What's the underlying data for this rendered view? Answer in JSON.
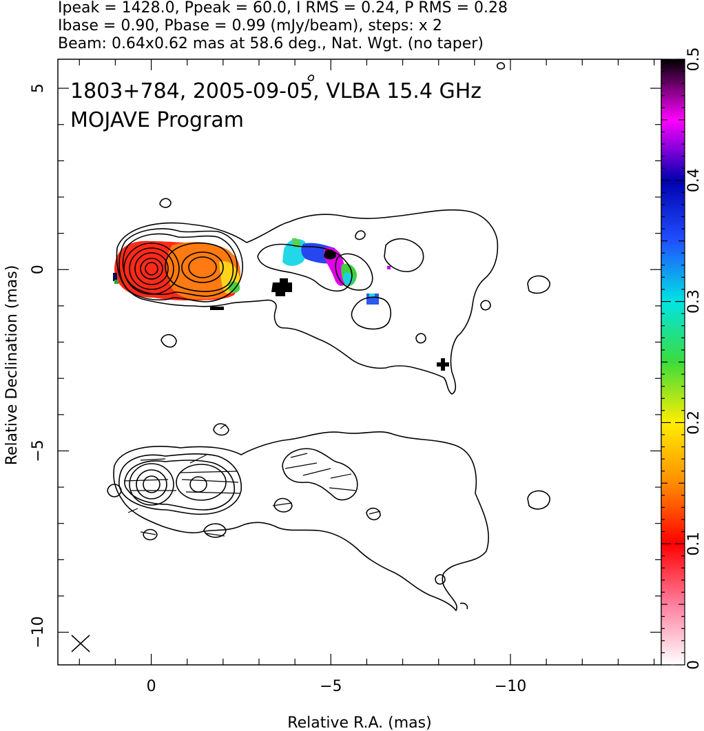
{
  "header": {
    "line1": "Ipeak = 1428.0, Ppeak = 60.0, I RMS = 0.24, P RMS = 0.28",
    "line2": "Ibase = 0.90, Pbase = 0.99 (mJy/beam), steps: x 2",
    "line3": "Beam: 0.64x0.62 mas at 58.6 deg., Nat. Wgt. (no taper)"
  },
  "chart_data": {
    "type": "heatmap",
    "annotation_line1": "1803+784, 2005-09-05, VLBA 15.4 GHz",
    "annotation_line2": "MOJAVE Program",
    "xlabel": "Relative R.A. (mas)",
    "ylabel": "Relative Declination (mas)",
    "xlim": [
      2.6,
      -14.2
    ],
    "ylim": [
      -10.9,
      5.8
    ],
    "x_ticks": [
      0,
      -5,
      -10
    ],
    "x_tick_labels": [
      "0",
      "−5",
      "−10"
    ],
    "y_ticks": [
      5,
      0,
      -5,
      -10
    ],
    "y_tick_labels": [
      "5",
      "0",
      "−5",
      "−10"
    ],
    "colorbar": {
      "min": 0,
      "max": 0.5,
      "ticks": [
        0,
        0.1,
        0.2,
        0.3,
        0.4,
        0.5
      ],
      "tick_labels": [
        "0",
        "0.1",
        "0.2",
        "0.3",
        "0.4",
        "0.5"
      ],
      "stops": [
        {
          "v": 0.0,
          "color": "#ffffff"
        },
        {
          "v": 0.05,
          "color": "#ff7f9f"
        },
        {
          "v": 0.1,
          "color": "#ff0000"
        },
        {
          "v": 0.15,
          "color": "#ff8c00"
        },
        {
          "v": 0.2,
          "color": "#ffee00"
        },
        {
          "v": 0.25,
          "color": "#3cdc3c"
        },
        {
          "v": 0.3,
          "color": "#00e4e4"
        },
        {
          "v": 0.35,
          "color": "#2050ff"
        },
        {
          "v": 0.4,
          "color": "#0000b0"
        },
        {
          "v": 0.45,
          "color": "#ff00ff"
        },
        {
          "v": 0.5,
          "color": "#000000"
        }
      ]
    },
    "grid": false,
    "beam": {
      "major_mas": 0.64,
      "minor_mas": 0.62,
      "pa_deg": 58.6
    },
    "upper_panel": {
      "core_ra": 0,
      "core_dec": 0,
      "fractional_polarization": [
        {
          "ra": 0.0,
          "dec": 0.0,
          "v": 0.09
        },
        {
          "ra": -1.4,
          "dec": 0.05,
          "v": 0.15
        },
        {
          "ra": -4.3,
          "dec": 0.4,
          "v": 0.3
        },
        {
          "ra": -4.7,
          "dec": 0.4,
          "v": 0.43
        },
        {
          "ra": -5.0,
          "dec": 0.4,
          "v": 0.5
        },
        {
          "ra": -5.4,
          "dec": -0.2,
          "v": 0.45
        },
        {
          "ra": -6.2,
          "dec": -0.9,
          "v": 0.37
        }
      ]
    },
    "lower_panel": {
      "core_ra": 0,
      "core_dec": -6.0
    }
  }
}
